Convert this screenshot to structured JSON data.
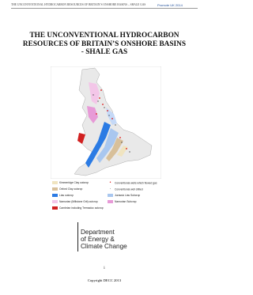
{
  "header": {
    "running_title": "THE UNCONVENTIONAL HYDROCARBON RESOURCES OF BRITAIN’S ONSHORE BASINS – SHALE GAS",
    "tag": "Promote UK 2014"
  },
  "title": {
    "lines": [
      "THE UNCONVENTIONAL HYDROCARBON",
      "RESOURCES OF BRITAIN’S ONSHORE BASINS",
      "- SHALE GAS"
    ]
  },
  "legend": {
    "left": [
      "Kimmeridge Clay outcrop",
      "Oxford Clay outcrop",
      "Lias outcrop",
      "Namurian (Millstone Grit) outcrop",
      "Cambrian including Tremadoc outcrop"
    ],
    "right": [
      "Conventional wells which flowed gas",
      "Conventional well drilled",
      "Jurassic Lias Subcrop",
      "Namurian  Subcrop"
    ]
  },
  "logo": {
    "lines": [
      "Department",
      "of Energy &",
      "Climate Change"
    ]
  },
  "page_number": "i",
  "copyright": "Copyright DECC 2013"
}
